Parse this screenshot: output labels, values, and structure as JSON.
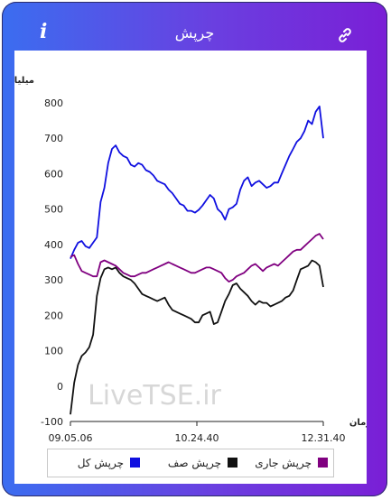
{
  "header": {
    "title": "چرپش",
    "info_icon": "info-icon",
    "link_icon": "link-icon"
  },
  "watermark": "LiveTSE.ir",
  "chart_data": {
    "type": "line",
    "ylabel": "میلیارد تومان",
    "xlabel": "زمان",
    "ylim": [
      -100,
      800
    ],
    "yticks": [
      "-100",
      "0",
      "100",
      "200",
      "300",
      "400",
      "500",
      "600",
      "700",
      "800"
    ],
    "xticks": [
      "09.05.06",
      "10.24.40",
      "12.31.40"
    ],
    "legend_position": "bottom",
    "grid": false,
    "series": [
      {
        "name": "چرپش کل",
        "color": "#1010e0",
        "values": [
          360,
          385,
          405,
          410,
          395,
          390,
          405,
          420,
          520,
          560,
          630,
          670,
          680,
          660,
          650,
          645,
          625,
          620,
          630,
          625,
          610,
          605,
          595,
          580,
          575,
          570,
          555,
          545,
          530,
          515,
          510,
          495,
          495,
          490,
          498,
          510,
          525,
          540,
          530,
          500,
          490,
          470,
          500,
          505,
          515,
          555,
          580,
          590,
          565,
          575,
          580,
          570,
          560,
          565,
          575,
          575,
          600,
          625,
          650,
          670,
          690,
          700,
          720,
          750,
          740,
          775,
          790,
          700
        ]
      },
      {
        "name": "چرپش صف",
        "color": "#111111",
        "values": [
          -80,
          10,
          60,
          85,
          95,
          110,
          145,
          255,
          305,
          330,
          335,
          330,
          335,
          320,
          310,
          305,
          300,
          290,
          275,
          260,
          255,
          250,
          245,
          240,
          245,
          250,
          230,
          215,
          210,
          205,
          200,
          195,
          190,
          180,
          180,
          200,
          205,
          210,
          175,
          180,
          210,
          240,
          260,
          285,
          290,
          275,
          265,
          255,
          240,
          230,
          240,
          235,
          235,
          225,
          230,
          235,
          240,
          250,
          255,
          270,
          300,
          330,
          335,
          340,
          355,
          350,
          340,
          280
        ]
      },
      {
        "name": "چرپش جاری",
        "color": "#800080",
        "values": [
          365,
          370,
          345,
          325,
          320,
          315,
          310,
          310,
          350,
          355,
          350,
          345,
          340,
          330,
          320,
          315,
          310,
          310,
          315,
          320,
          320,
          325,
          330,
          335,
          340,
          345,
          350,
          345,
          340,
          335,
          330,
          325,
          320,
          320,
          325,
          330,
          335,
          335,
          330,
          325,
          320,
          305,
          295,
          300,
          310,
          315,
          320,
          330,
          340,
          345,
          335,
          325,
          335,
          340,
          345,
          340,
          350,
          360,
          370,
          380,
          385,
          385,
          395,
          405,
          415,
          425,
          430,
          415
        ]
      }
    ]
  }
}
